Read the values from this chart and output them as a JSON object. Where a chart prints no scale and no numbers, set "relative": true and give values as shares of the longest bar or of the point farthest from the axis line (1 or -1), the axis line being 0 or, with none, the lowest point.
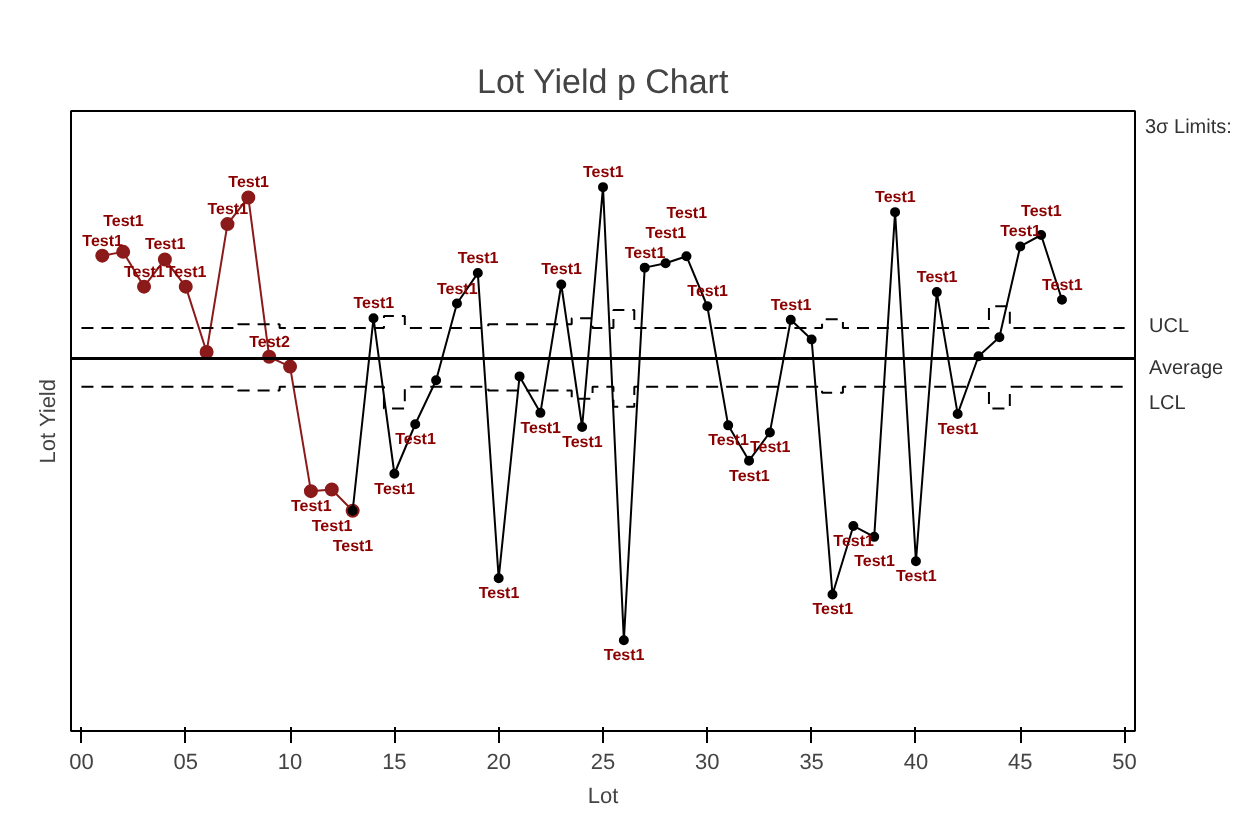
{
  "chart_data": {
    "type": "line",
    "title": "Lot Yield p Chart",
    "xlabel": "Lot",
    "ylabel": "Lot Yield",
    "relative": true,
    "xlim": [
      -0.5,
      50.5
    ],
    "xticks": [
      {
        "value": 0,
        "label": "00"
      },
      {
        "value": 5,
        "label": "05"
      },
      10,
      15,
      20,
      25,
      30,
      35,
      40,
      45,
      50
    ],
    "grid": false,
    "legend": false,
    "marker": "circle",
    "line_style": "solid",
    "series": [
      {
        "color": "#8b1a1a",
        "x": [
          1,
          2,
          3,
          4,
          5,
          6,
          7,
          8,
          9,
          10,
          11,
          12,
          13
        ],
        "values": [
          0.874,
          0.881,
          0.817,
          0.867,
          0.817,
          0.697,
          0.932,
          0.981,
          0.688,
          0.67,
          0.441,
          0.444,
          0.405
        ]
      },
      {
        "color": "#000000",
        "x": [
          13,
          14,
          15,
          16,
          17,
          18,
          19,
          20,
          21,
          22,
          23,
          24,
          25,
          26,
          27,
          28,
          29,
          30,
          31,
          32,
          33,
          34,
          35,
          36,
          37,
          38,
          39,
          40,
          41,
          42,
          43,
          44,
          45,
          46,
          47
        ],
        "values": [
          0.405,
          0.759,
          0.473,
          0.564,
          0.645,
          0.786,
          0.842,
          0.281,
          0.652,
          0.585,
          0.821,
          0.559,
          1.0,
          0.167,
          0.852,
          0.86,
          0.873,
          0.781,
          0.562,
          0.497,
          0.549,
          0.756,
          0.72,
          0.251,
          0.377,
          0.357,
          0.954,
          0.312,
          0.807,
          0.583,
          0.689,
          0.724,
          0.891,
          0.912,
          0.793
        ]
      },
      {
        "name": "UCL",
        "type": "step",
        "color": "#000000",
        "line_style": "dashed",
        "marker": "none",
        "x": [
          0,
          1,
          2,
          3,
          4,
          5,
          6,
          7,
          8,
          9,
          10,
          11,
          12,
          13,
          14,
          15,
          16,
          17,
          18,
          19,
          20,
          21,
          22,
          23,
          24,
          25,
          26,
          27,
          28,
          29,
          30,
          31,
          32,
          33,
          34,
          35,
          36,
          37,
          38,
          39,
          40,
          41,
          42,
          43,
          44,
          45,
          46,
          47,
          48,
          49,
          50
        ],
        "values": [
          0.741,
          0.741,
          0.741,
          0.741,
          0.741,
          0.741,
          0.741,
          0.741,
          0.748,
          0.748,
          0.741,
          0.741,
          0.741,
          0.741,
          0.741,
          0.763,
          0.741,
          0.741,
          0.741,
          0.741,
          0.748,
          0.748,
          0.748,
          0.748,
          0.759,
          0.741,
          0.774,
          0.741,
          0.741,
          0.741,
          0.741,
          0.741,
          0.741,
          0.741,
          0.741,
          0.741,
          0.757,
          0.741,
          0.741,
          0.741,
          0.741,
          0.741,
          0.741,
          0.741,
          0.781,
          0.741,
          0.741,
          0.741,
          0.741,
          0.741,
          0.741
        ]
      },
      {
        "name": "LCL",
        "type": "step",
        "color": "#000000",
        "line_style": "dashed",
        "marker": "none",
        "x": [
          0,
          1,
          2,
          3,
          4,
          5,
          6,
          7,
          8,
          9,
          10,
          11,
          12,
          13,
          14,
          15,
          16,
          17,
          18,
          19,
          20,
          21,
          22,
          23,
          24,
          25,
          26,
          27,
          28,
          29,
          30,
          31,
          32,
          33,
          34,
          35,
          36,
          37,
          38,
          39,
          40,
          41,
          42,
          43,
          44,
          45,
          46,
          47,
          48,
          49,
          50
        ],
        "values": [
          0.633,
          0.633,
          0.633,
          0.633,
          0.633,
          0.633,
          0.633,
          0.633,
          0.626,
          0.626,
          0.633,
          0.633,
          0.633,
          0.633,
          0.633,
          0.593,
          0.633,
          0.633,
          0.633,
          0.633,
          0.626,
          0.626,
          0.626,
          0.626,
          0.611,
          0.633,
          0.596,
          0.633,
          0.633,
          0.633,
          0.633,
          0.633,
          0.633,
          0.633,
          0.633,
          0.633,
          0.622,
          0.633,
          0.633,
          0.633,
          0.633,
          0.633,
          0.633,
          0.633,
          0.593,
          0.633,
          0.633,
          0.633,
          0.633,
          0.633,
          0.633
        ]
      }
    ],
    "ref_lines": [
      {
        "axis": "y",
        "value": 0.685,
        "label": "Average",
        "color": "#000000"
      }
    ],
    "annotations": [
      "3σ Limits:",
      {
        "text": "Test1",
        "x": 1,
        "y": 0.874
      },
      {
        "text": "Test1",
        "x": 2,
        "y": 0.881
      },
      {
        "text": "Test1",
        "x": 3,
        "y": 0.817
      },
      {
        "text": "Test1",
        "x": 4,
        "y": 0.867
      },
      {
        "text": "Test1",
        "x": 5,
        "y": 0.817
      },
      {
        "text": "Test1",
        "x": 7,
        "y": 0.932
      },
      {
        "text": "Test1",
        "x": 8,
        "y": 0.981
      },
      {
        "text": "Test2",
        "x": 9,
        "y": 0.688
      },
      {
        "text": "Test1",
        "x": 11,
        "y": 0.441
      },
      {
        "text": "Test1",
        "x": 12,
        "y": 0.444
      },
      {
        "text": "Test1",
        "x": 13,
        "y": 0.405
      },
      {
        "text": "Test1",
        "x": 14,
        "y": 0.759
      },
      {
        "text": "Test1",
        "x": 15,
        "y": 0.473
      },
      {
        "text": "Test1",
        "x": 16,
        "y": 0.564
      },
      {
        "text": "Test1",
        "x": 18,
        "y": 0.786
      },
      {
        "text": "Test1",
        "x": 19,
        "y": 0.842
      },
      {
        "text": "Test1",
        "x": 20,
        "y": 0.281
      },
      {
        "text": "Test1",
        "x": 22,
        "y": 0.585
      },
      {
        "text": "Test1",
        "x": 23,
        "y": 0.821
      },
      {
        "text": "Test1",
        "x": 24,
        "y": 0.559
      },
      {
        "text": "Test1",
        "x": 25,
        "y": 1.0
      },
      {
        "text": "Test1",
        "x": 26,
        "y": 0.167
      },
      {
        "text": "Test1",
        "x": 27,
        "y": 0.852
      },
      {
        "text": "Test1",
        "x": 28,
        "y": 0.86
      },
      {
        "text": "Test1",
        "x": 29,
        "y": 0.873
      },
      {
        "text": "Test1",
        "x": 30,
        "y": 0.781
      },
      {
        "text": "Test1",
        "x": 31,
        "y": 0.562
      },
      {
        "text": "Test1",
        "x": 32,
        "y": 0.497
      },
      {
        "text": "Test1",
        "x": 33,
        "y": 0.549
      },
      {
        "text": "Test1",
        "x": 34,
        "y": 0.756
      },
      {
        "text": "Test1",
        "x": 36,
        "y": 0.251
      },
      {
        "text": "Test1",
        "x": 37,
        "y": 0.377
      },
      {
        "text": "Test1",
        "x": 38,
        "y": 0.357
      },
      {
        "text": "Test1",
        "x": 39,
        "y": 0.954
      },
      {
        "text": "Test1",
        "x": 40,
        "y": 0.312
      },
      {
        "text": "Test1",
        "x": 41,
        "y": 0.807
      },
      {
        "text": "Test1",
        "x": 42,
        "y": 0.583
      },
      {
        "text": "Test1",
        "x": 45,
        "y": 0.891
      },
      {
        "text": "Test1",
        "x": 46,
        "y": 0.912
      },
      {
        "text": "Test1",
        "x": 47,
        "y": 0.793
      }
    ]
  }
}
